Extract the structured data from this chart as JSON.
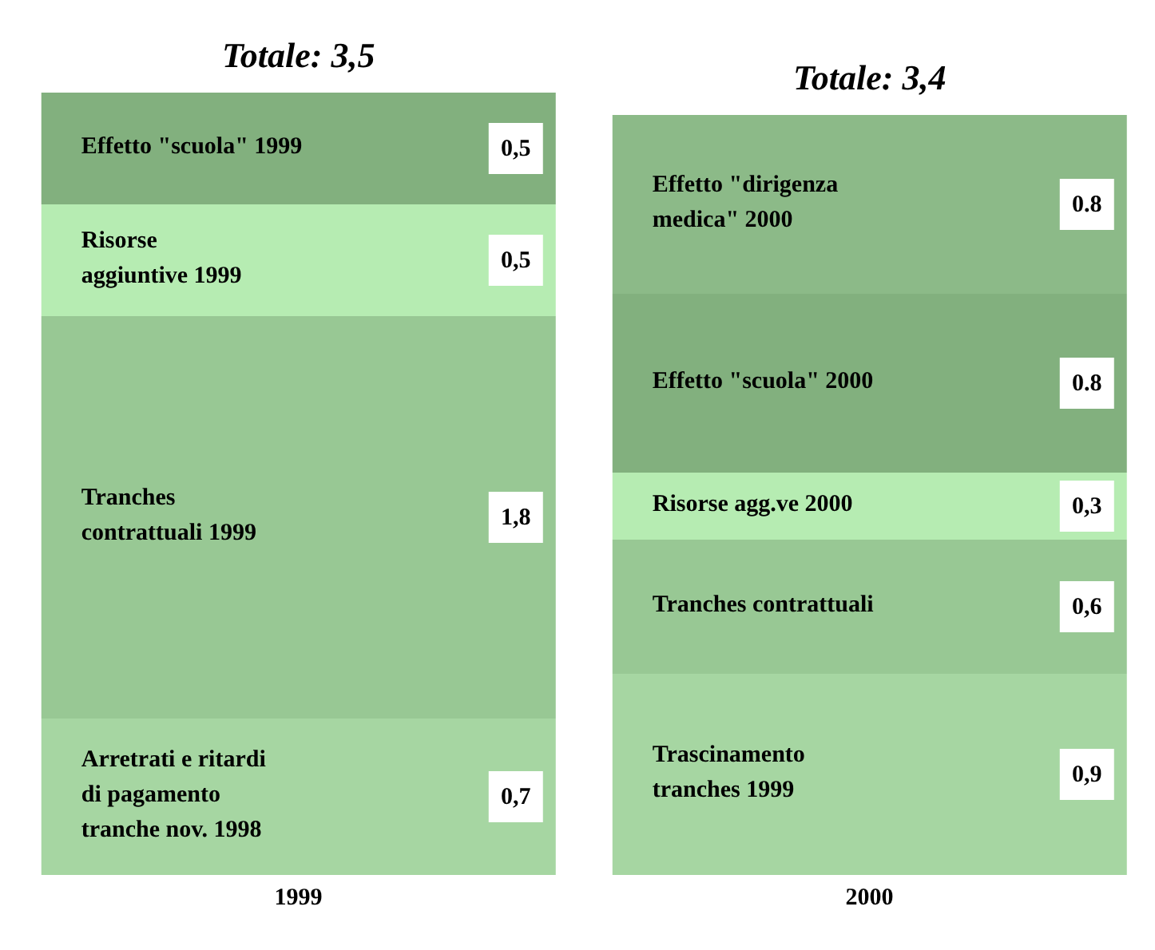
{
  "chart_data": {
    "type": "bar",
    "stacked": true,
    "categories": [
      "1999",
      "2000"
    ],
    "series": [
      {
        "color": "#a6d6a2",
        "values": [
          0.7,
          0.9
        ],
        "value_labels": [
          "0,7",
          "0,9"
        ]
      },
      {
        "color": "#98c894",
        "values": [
          1.8,
          0.6
        ],
        "value_labels": [
          "1,8",
          "0,6"
        ]
      },
      {
        "color": "#b6ecb2",
        "values": [
          0.5,
          0.3
        ],
        "value_labels": [
          "0,5",
          "0,3"
        ]
      },
      {
        "color": "#82b07e",
        "values": [
          0.5,
          0.8
        ],
        "value_labels": [
          "0,5",
          "0.8"
        ]
      },
      {
        "color": "#8cba88",
        "values": [
          null,
          0.8
        ],
        "value_labels": [
          null,
          "0.8"
        ]
      }
    ],
    "totals": [
      "Totale: 3,5",
      "Totale: 3,4"
    ],
    "annotations": [
      "Arretrati e ritardi\ndi pagamento\ntranche nov. 1998",
      "Tranches\ncontrattuali 1999",
      "Risorse\naggiuntive 1999",
      "Effetto \"scuola\" 1999",
      "Trascinamento\ntranches 1999",
      "Tranches contrattuali",
      "Risorse agg.ve 2000",
      "Effetto \"scuola\" 2000",
      "Effetto \"dirigenza\nmedica\" 2000"
    ],
    "legend": false,
    "grid": false,
    "tick_labels": "x"
  }
}
